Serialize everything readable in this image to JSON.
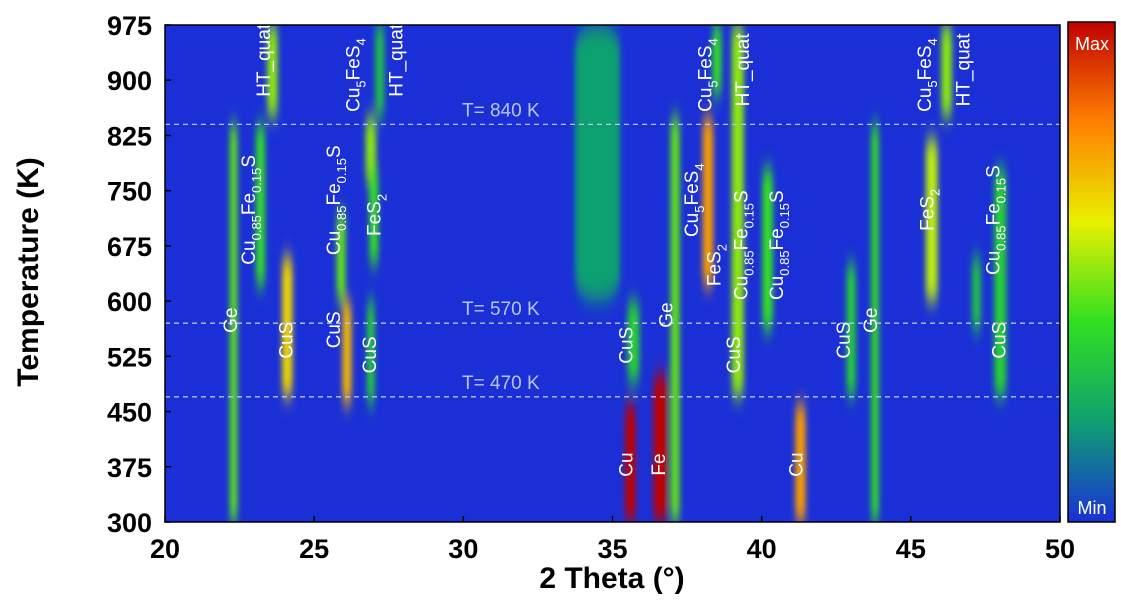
{
  "chart_data": {
    "type": "heatmap",
    "xlabel": "2 Theta (°)",
    "ylabel": "Temperature (K)",
    "xlim": [
      20,
      50
    ],
    "ylim": [
      300,
      975
    ],
    "xticks": [
      20,
      25,
      30,
      35,
      40,
      45,
      50
    ],
    "yticks": [
      300,
      375,
      450,
      525,
      600,
      675,
      750,
      825,
      900,
      975
    ],
    "background": "#1a30d6",
    "colormap": [
      "#1a30d6",
      "#10a070",
      "#30e020",
      "#e8f000",
      "#ff8000",
      "#c00000"
    ],
    "colorbar": {
      "max_label": "Max",
      "min_label": "Min"
    },
    "peaks": [
      {
        "x": 22.3,
        "t": [
          300,
          840
        ],
        "width": 0.25,
        "intensity": 0.45
      },
      {
        "x": 23.2,
        "t": [
          620,
          840
        ],
        "width": 0.3,
        "intensity": 0.4
      },
      {
        "x": 23.6,
        "t": [
          850,
          975
        ],
        "width": 0.35,
        "intensity": 0.5
      },
      {
        "x": 24.1,
        "t": [
          470,
          660
        ],
        "width": 0.35,
        "intensity": 0.65
      },
      {
        "x": 25.9,
        "t": [
          600,
          720
        ],
        "width": 0.3,
        "intensity": 0.45
      },
      {
        "x": 26.1,
        "t": [
          460,
          600
        ],
        "width": 0.3,
        "intensity": 0.7
      },
      {
        "x": 26.9,
        "t": [
          760,
          850
        ],
        "width": 0.35,
        "intensity": 0.5
      },
      {
        "x": 27.0,
        "t": [
          650,
          780
        ],
        "width": 0.3,
        "intensity": 0.4
      },
      {
        "x": 26.9,
        "t": [
          460,
          600
        ],
        "width": 0.25,
        "intensity": 0.35
      },
      {
        "x": 27.2,
        "t": [
          850,
          975
        ],
        "width": 0.3,
        "intensity": 0.3
      },
      {
        "x": 34.5,
        "t": [
          600,
          975
        ],
        "width": 1.5,
        "intensity": 0.2
      },
      {
        "x": 35.6,
        "t": [
          300,
          460
        ],
        "width": 0.35,
        "intensity": 1.0
      },
      {
        "x": 36.6,
        "t": [
          300,
          500
        ],
        "width": 0.45,
        "intensity": 1.0
      },
      {
        "x": 35.7,
        "t": [
          490,
          600
        ],
        "width": 0.4,
        "intensity": 0.35
      },
      {
        "x": 37.1,
        "t": [
          300,
          850
        ],
        "width": 0.3,
        "intensity": 0.45
      },
      {
        "x": 38.2,
        "t": [
          620,
          850
        ],
        "width": 0.35,
        "intensity": 0.75
      },
      {
        "x": 38.5,
        "t": [
          880,
          975
        ],
        "width": 0.3,
        "intensity": 0.4
      },
      {
        "x": 39.2,
        "t": [
          470,
          975
        ],
        "width": 0.4,
        "intensity": 0.5
      },
      {
        "x": 40.2,
        "t": [
          560,
          780
        ],
        "width": 0.35,
        "intensity": 0.4
      },
      {
        "x": 41.3,
        "t": [
          300,
          460
        ],
        "width": 0.35,
        "intensity": 0.75
      },
      {
        "x": 43.0,
        "t": [
          470,
          650
        ],
        "width": 0.3,
        "intensity": 0.35
      },
      {
        "x": 43.8,
        "t": [
          300,
          840
        ],
        "width": 0.25,
        "intensity": 0.4
      },
      {
        "x": 45.7,
        "t": [
          600,
          820
        ],
        "width": 0.4,
        "intensity": 0.55
      },
      {
        "x": 46.2,
        "t": [
          850,
          975
        ],
        "width": 0.35,
        "intensity": 0.5
      },
      {
        "x": 47.2,
        "t": [
          560,
          660
        ],
        "width": 0.3,
        "intensity": 0.3
      },
      {
        "x": 48.0,
        "t": [
          470,
          780
        ],
        "width": 0.4,
        "intensity": 0.35
      }
    ],
    "reference_lines": [
      {
        "value": 840,
        "label": "T= 840 K"
      },
      {
        "value": 570,
        "label": "T= 570 K"
      },
      {
        "value": 470,
        "label": "T= 470 K"
      }
    ],
    "annotations": [
      {
        "x": 22.25,
        "y": 574,
        "parts": [
          "Ge"
        ]
      },
      {
        "x": 22.85,
        "y": 724,
        "parts": [
          "Cu",
          "0.85",
          "Fe",
          "0.15",
          "S"
        ]
      },
      {
        "x": 23.35,
        "y": 927,
        "parts": [
          "HT_quat"
        ]
      },
      {
        "x": 24.1,
        "y": 547,
        "parts": [
          "CuS"
        ]
      },
      {
        "x": 25.7,
        "y": 737,
        "parts": [
          "Cu",
          "0.85",
          "Fe",
          "0.15",
          "S"
        ]
      },
      {
        "x": 25.7,
        "y": 561,
        "parts": [
          "CuS"
        ]
      },
      {
        "x": 26.35,
        "y": 907,
        "parts": [
          "Cu",
          "5",
          "FeS",
          "4"
        ]
      },
      {
        "x": 27.8,
        "y": 927,
        "parts": [
          "HT_quat"
        ]
      },
      {
        "x": 27.05,
        "y": 717,
        "parts": [
          "FeS",
          "2"
        ]
      },
      {
        "x": 26.9,
        "y": 527,
        "parts": [
          "CuS"
        ]
      },
      {
        "x": 35.5,
        "y": 540,
        "parts": [
          "CuS"
        ]
      },
      {
        "x": 36.85,
        "y": 581,
        "parts": [
          "Ge"
        ]
      },
      {
        "x": 35.5,
        "y": 378,
        "parts": [
          "Cu"
        ]
      },
      {
        "x": 36.6,
        "y": 378,
        "parts": [
          "Fe"
        ]
      },
      {
        "x": 37.7,
        "y": 737,
        "parts": [
          "Cu",
          "5",
          "FeS",
          "4"
        ]
      },
      {
        "x": 38.15,
        "y": 907,
        "parts": [
          "Cu",
          "5",
          "FeS",
          "4"
        ]
      },
      {
        "x": 38.45,
        "y": 649,
        "parts": [
          "FeS",
          "2"
        ]
      },
      {
        "x": 39.4,
        "y": 914,
        "parts": [
          "HT_quat"
        ]
      },
      {
        "x": 39.35,
        "y": 676,
        "parts": [
          "Cu",
          "0.85",
          "Fe",
          "0.15",
          "S"
        ]
      },
      {
        "x": 40.55,
        "y": 676,
        "parts": [
          "Cu",
          "0.85",
          "Fe",
          "0.15",
          "S"
        ]
      },
      {
        "x": 39.1,
        "y": 527,
        "parts": [
          "CuS"
        ]
      },
      {
        "x": 41.2,
        "y": 378,
        "parts": [
          "Cu"
        ]
      },
      {
        "x": 42.8,
        "y": 547,
        "parts": [
          "CuS"
        ]
      },
      {
        "x": 43.7,
        "y": 574,
        "parts": [
          "Ge"
        ]
      },
      {
        "x": 45.5,
        "y": 907,
        "parts": [
          "Cu",
          "5",
          "FeS",
          "4"
        ]
      },
      {
        "x": 46.8,
        "y": 914,
        "parts": [
          "HT_quat"
        ]
      },
      {
        "x": 45.6,
        "y": 724,
        "parts": [
          "FeS",
          "2"
        ]
      },
      {
        "x": 47.8,
        "y": 710,
        "parts": [
          "Cu",
          "0.85",
          "Fe",
          "0.15",
          "S"
        ]
      },
      {
        "x": 48.0,
        "y": 547,
        "parts": [
          "CuS"
        ]
      }
    ]
  }
}
